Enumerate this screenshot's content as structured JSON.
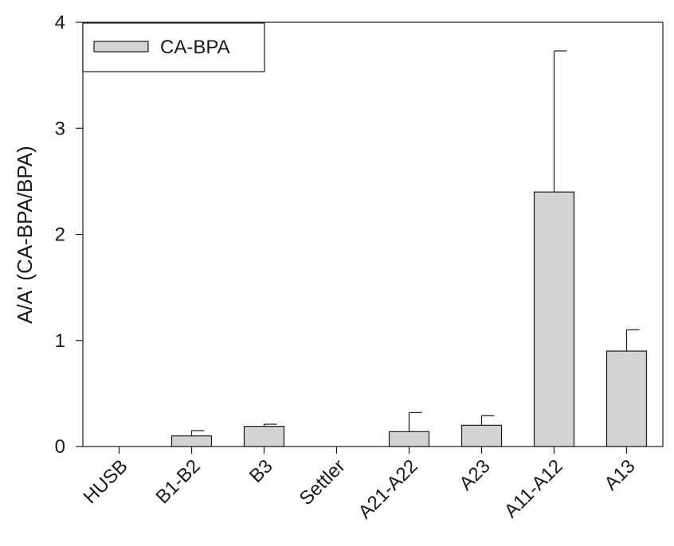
{
  "chart_data": {
    "type": "bar",
    "categories": [
      "HUSB",
      "B1-B2",
      "B3",
      "Settler",
      "A21-A22",
      "A23",
      "A11-A12",
      "A13"
    ],
    "series": [
      {
        "name": "CA-BPA",
        "values": [
          0,
          0.1,
          0.19,
          0,
          0.14,
          0.2,
          2.4,
          0.9
        ],
        "errors": [
          0,
          0.05,
          0.02,
          0,
          0.18,
          0.09,
          1.33,
          0.2
        ],
        "color": "#d3d3d3"
      }
    ],
    "title": "",
    "xlabel": "",
    "ylabel": "A/A' (CA-BPA/BPA)",
    "ylim": [
      0,
      4
    ],
    "yticks": [
      "0",
      "1",
      "2",
      "3",
      "4"
    ],
    "grid": false,
    "legend": "top-left",
    "bar_color": "#d3d3d3",
    "edge_color": "#1a1a1a"
  }
}
